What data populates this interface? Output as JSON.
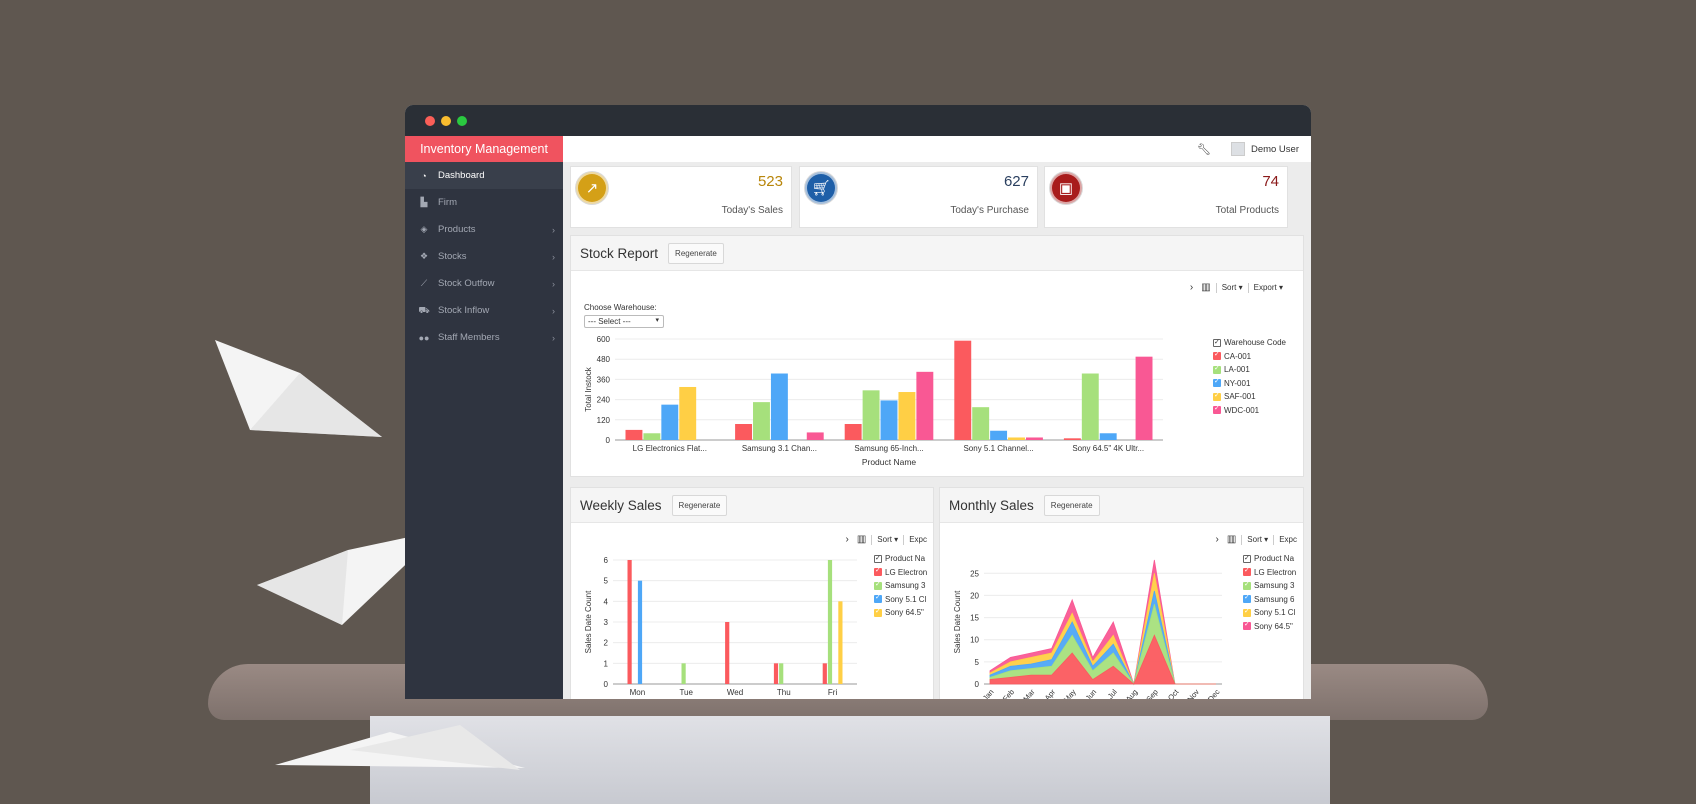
{
  "colors": {
    "accent": "#f0535f",
    "sidebar": "#2f3440",
    "series": [
      "#fb5a5e",
      "#a6e07c",
      "#4ea7f7",
      "#ffcf45",
      "#f95894"
    ]
  },
  "app": {
    "brand": "Inventory Management",
    "user": "Demo User"
  },
  "sidebar": {
    "items": [
      {
        "label": "Dashboard",
        "icon": "dashboard-icon"
      },
      {
        "label": "Firm",
        "icon": "bar-chart-icon"
      },
      {
        "label": "Products",
        "icon": "cube-icon"
      },
      {
        "label": "Stocks",
        "icon": "cubes-icon"
      },
      {
        "label": "Stock Outfow",
        "icon": "line-chart-icon"
      },
      {
        "label": "Stock Inflow",
        "icon": "cart-icon"
      },
      {
        "label": "Staff Members",
        "icon": "users-icon"
      }
    ]
  },
  "kpis": [
    {
      "value": "523",
      "label": "Today's Sales",
      "icon": "trend-up-icon",
      "color": "#d4a017",
      "value_color": "#b8860b"
    },
    {
      "value": "627",
      "label": "Today's Purchase",
      "icon": "cart-icon",
      "color": "#1e5fa8",
      "value_color": "#2a3f5f"
    },
    {
      "value": "74",
      "label": "Total Products",
      "icon": "box-icon",
      "color": "#a81c1c",
      "value_color": "#8b1a1a"
    }
  ],
  "stock_report": {
    "title": "Stock Report",
    "regenerate": "Regenerate",
    "sort": "Sort ▾",
    "export": "Export ▾",
    "warehouse_label": "Choose Warehouse:",
    "warehouse_select": "--- Select ---"
  },
  "weekly_sales": {
    "title": "Weekly Sales",
    "regenerate": "Regenerate",
    "sort": "Sort ▾",
    "export": "Expc"
  },
  "monthly_sales": {
    "title": "Monthly Sales",
    "regenerate": "Regenerate",
    "sort": "Sort ▾",
    "export": "Expc"
  },
  "chart_data": [
    {
      "type": "bar",
      "title": "",
      "xlabel": "Product Name",
      "ylabel": "Total Instock",
      "ylim": [
        0,
        600
      ],
      "yticks": [
        0,
        120,
        240,
        360,
        480,
        600
      ],
      "legend_title": "Warehouse Code",
      "legend_position": "right",
      "categories": [
        "LG Electronics Flat...",
        "Samsung 3.1 Chan...",
        "Samsung 65-Inch...",
        "Sony 5.1 Channel...",
        "Sony 64.5\" 4K Ultr..."
      ],
      "series": [
        {
          "name": "CA-001",
          "values": [
            60,
            95,
            95,
            590,
            10
          ]
        },
        {
          "name": "LA-001",
          "values": [
            40,
            225,
            295,
            195,
            395
          ]
        },
        {
          "name": "NY-001",
          "values": [
            210,
            395,
            235,
            55,
            40
          ]
        },
        {
          "name": "SAF-001",
          "values": [
            315,
            0,
            285,
            15,
            0
          ]
        },
        {
          "name": "WDC-001",
          "values": [
            0,
            45,
            405,
            15,
            495
          ]
        }
      ]
    },
    {
      "type": "bar",
      "title": "",
      "xlabel": "",
      "ylabel": "Sales Date Count",
      "ylim": [
        0,
        6
      ],
      "yticks": [
        0,
        1,
        2,
        3,
        4,
        5,
        6
      ],
      "legend_title": "Product Na",
      "legend_position": "right",
      "categories": [
        "Mon",
        "Tue",
        "Wed",
        "Thu",
        "Fri"
      ],
      "series": [
        {
          "name": "LG Electron",
          "values": [
            6,
            0,
            3,
            1,
            1
          ]
        },
        {
          "name": "Samsung 3",
          "values": [
            0,
            1,
            0,
            1,
            6
          ]
        },
        {
          "name": "Sony 5.1 Cl",
          "values": [
            5,
            0,
            0,
            0,
            0
          ]
        },
        {
          "name": "Sony 64.5\"",
          "values": [
            0,
            0,
            0,
            0,
            4
          ]
        }
      ]
    },
    {
      "type": "area",
      "stacked": true,
      "title": "",
      "xlabel": "",
      "ylabel": "Sales Date Count",
      "ylim": [
        0,
        28
      ],
      "yticks": [
        0,
        5,
        10,
        15,
        20,
        25
      ],
      "legend_title": "Product Na",
      "legend_position": "right",
      "categories": [
        "Jan",
        "Feb",
        "Mar",
        "Apr",
        "May",
        "Jun",
        "Jul",
        "Aug",
        "Sep",
        "Oct",
        "Nov",
        "Dec"
      ],
      "series": [
        {
          "name": "LG Electron",
          "values": [
            1,
            1.5,
            2,
            2,
            7,
            1,
            4,
            0,
            11,
            0,
            0,
            0
          ]
        },
        {
          "name": "Samsung 3",
          "values": [
            0.5,
            1.5,
            1.5,
            2,
            4,
            2,
            3,
            0,
            7,
            0,
            0,
            0
          ]
        },
        {
          "name": "Samsung 6",
          "values": [
            0.5,
            1,
            1,
            1.5,
            3,
            1,
            2,
            0,
            3,
            0,
            0,
            0
          ]
        },
        {
          "name": "Sony 5.1 Cl",
          "values": [
            0.5,
            1,
            1.5,
            1.5,
            2,
            1,
            2,
            0,
            4,
            0,
            0,
            0
          ]
        },
        {
          "name": "Sony 64.5\"",
          "values": [
            0.5,
            1,
            1,
            1,
            3,
            1,
            3,
            0,
            3,
            0,
            0,
            0
          ]
        }
      ]
    }
  ]
}
